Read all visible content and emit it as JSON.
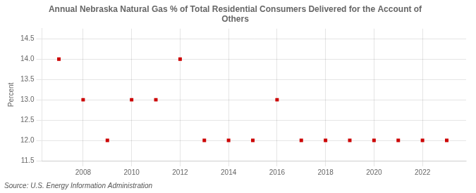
{
  "chart_data": {
    "type": "scatter",
    "title": "Annual Nebraska Natural Gas % of Total Residential Consumers Delivered for the Account of\nOthers",
    "ylabel": "Percent",
    "annotations": [
      "Source: U.S. Energy Information Administration"
    ],
    "x": [
      2007,
      2008,
      2009,
      2010,
      2011,
      2012,
      2013,
      2014,
      2015,
      2016,
      2017,
      2018,
      2019,
      2020,
      2021,
      2022,
      2023
    ],
    "values": [
      14.0,
      13.0,
      12.0,
      13.0,
      13.0,
      14.0,
      12.0,
      12.0,
      12.0,
      13.0,
      12.0,
      12.0,
      12.0,
      12.0,
      12.0,
      12.0,
      12.0
    ],
    "color": "#cc0000",
    "marker": "square",
    "xlim": [
      2006.3,
      2023.8
    ],
    "xticks": [
      2008,
      2010,
      2012,
      2014,
      2016,
      2018,
      2020,
      2022
    ],
    "ylim": [
      11.5,
      14.75
    ],
    "yticks": [
      11.5,
      {
        "value": 12.0,
        "label": "12.0"
      },
      12.5,
      {
        "value": 13.0,
        "label": "13.0"
      },
      13.5,
      {
        "value": 14.0,
        "label": "14.0"
      },
      14.5
    ],
    "grid": true
  }
}
